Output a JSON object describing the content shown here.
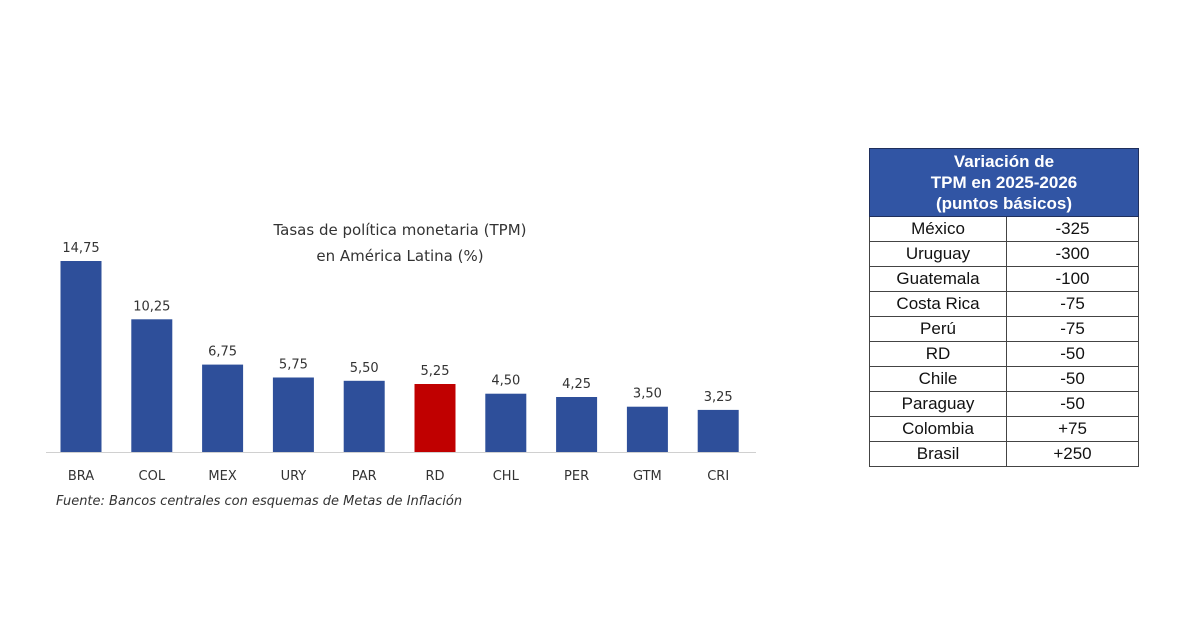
{
  "chart_data": {
    "type": "bar",
    "title_lines": [
      "Tasas de política monetaria (TPM)",
      "en América Latina (%)"
    ],
    "categories": [
      "BRA",
      "COL",
      "MEX",
      "URY",
      "PAR",
      "RD",
      "CHL",
      "PER",
      "GTM",
      "CRI"
    ],
    "values": [
      14.75,
      10.25,
      6.75,
      5.75,
      5.5,
      5.25,
      4.5,
      4.25,
      3.5,
      3.25
    ],
    "value_labels": [
      "14,75",
      "10,25",
      "6,75",
      "5,75",
      "5,50",
      "5,25",
      "4,50",
      "4,25",
      "3,50",
      "3,25"
    ],
    "highlight_category": "RD",
    "bar_color": "#2e4f9a",
    "highlight_color": "#c00000",
    "ylim": [
      0,
      16
    ],
    "grid": false,
    "source": "Fuente: Bancos centrales con esquemas de Metas de Inflación"
  },
  "table": {
    "header_lines": [
      "Variación de",
      "TPM en 2025-2026",
      "(puntos básicos)"
    ],
    "header_color": "#3155a4",
    "rows": [
      {
        "country": "México",
        "value": "-325"
      },
      {
        "country": "Uruguay",
        "value": "-300"
      },
      {
        "country": "Guatemala",
        "value": "-100"
      },
      {
        "country": "Costa Rica",
        "value": "-75"
      },
      {
        "country": "Perú",
        "value": "-75"
      },
      {
        "country": "RD",
        "value": "-50"
      },
      {
        "country": "Chile",
        "value": "-50"
      },
      {
        "country": "Paraguay",
        "value": "-50"
      },
      {
        "country": "Colombia",
        "value": "+75"
      },
      {
        "country": "Brasil",
        "value": "+250"
      }
    ]
  }
}
